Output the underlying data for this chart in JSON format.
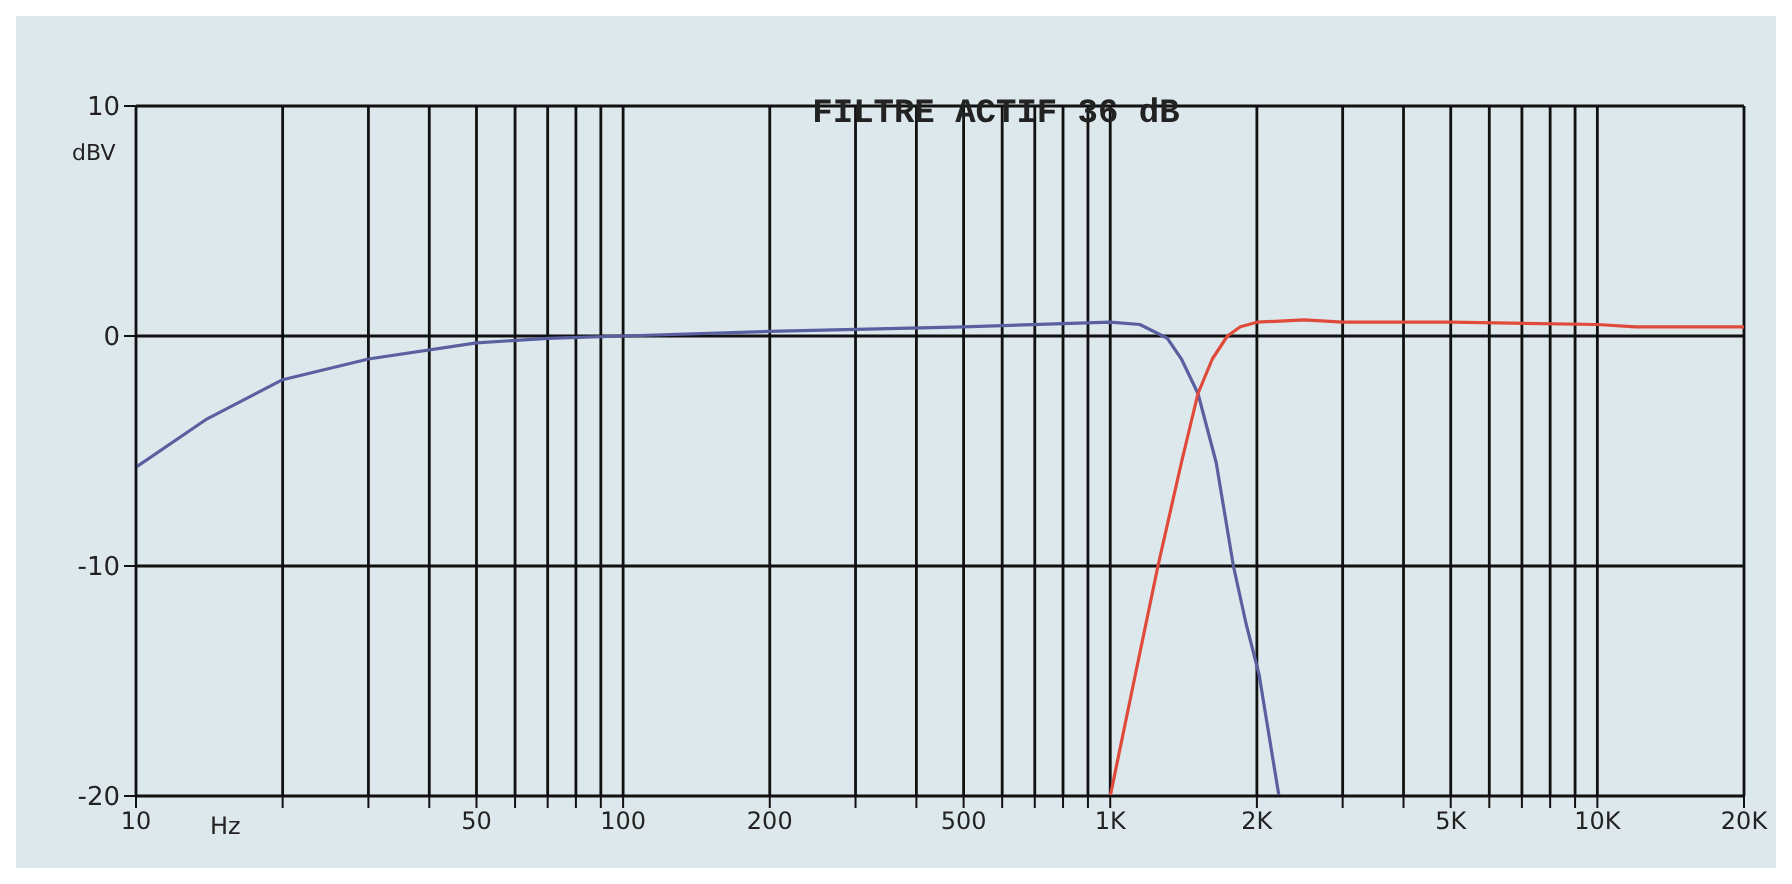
{
  "chart_data": {
    "type": "line",
    "title": "FILTRE ACTIF 36 dB",
    "xlabel": "Hz",
    "ylabel": "dBV",
    "log": "x",
    "grid": true,
    "marker": "none",
    "line_style": "solid",
    "xlim": [
      10,
      20000
    ],
    "ylim": [
      -20,
      10
    ],
    "yticks": [
      -20,
      -10,
      0,
      10
    ],
    "xticks": [
      10,
      {
        "value": 20,
        "label": null
      },
      {
        "value": 30,
        "label": null
      },
      {
        "value": 40,
        "label": null
      },
      50,
      {
        "value": 60,
        "label": null
      },
      {
        "value": 70,
        "label": null
      },
      {
        "value": 80,
        "label": null
      },
      {
        "value": 90,
        "label": null
      },
      100,
      200,
      {
        "value": 300,
        "label": null
      },
      {
        "value": 400,
        "label": null
      },
      500,
      {
        "value": 600,
        "label": null
      },
      {
        "value": 700,
        "label": null
      },
      {
        "value": 800,
        "label": null
      },
      {
        "value": 900,
        "label": null
      },
      {
        "value": 1000,
        "label": "1K"
      },
      {
        "value": 2000,
        "label": "2K"
      },
      {
        "value": 3000,
        "label": null
      },
      {
        "value": 4000,
        "label": null
      },
      {
        "value": 5000,
        "label": "5K"
      },
      {
        "value": 6000,
        "label": null
      },
      {
        "value": 7000,
        "label": null
      },
      {
        "value": 8000,
        "label": null
      },
      {
        "value": 9000,
        "label": null
      },
      {
        "value": 10000,
        "label": "10K"
      },
      {
        "value": 20000,
        "label": "20K"
      }
    ],
    "series": [
      {
        "color": "#5a5fa0",
        "x": [
          10,
          14,
          20,
          30,
          50,
          70,
          100,
          200,
          500,
          1000,
          1150,
          1310,
          1400,
          1514,
          1650,
          1790,
          1900,
          2020,
          2220
        ],
        "values": [
          -5.7,
          -3.6,
          -1.9,
          -1,
          -0.3,
          -0.1,
          0,
          0.2,
          0.4,
          0.6,
          0.5,
          -0.1,
          -1,
          -2.5,
          -5.5,
          -10,
          -12.5,
          -14.7,
          -20
        ]
      },
      {
        "color": "#e04a3a",
        "x": [
          1000,
          1119,
          1253,
          1400,
          1514,
          1620,
          1740,
          1850,
          2000,
          2500,
          3000,
          5000,
          10000,
          12000,
          20000
        ],
        "values": [
          -20,
          -15,
          -10,
          -5.5,
          -2.5,
          -1,
          0,
          0.4,
          0.6,
          0.7,
          0.6,
          0.6,
          0.5,
          0.4,
          0.4
        ]
      }
    ]
  }
}
